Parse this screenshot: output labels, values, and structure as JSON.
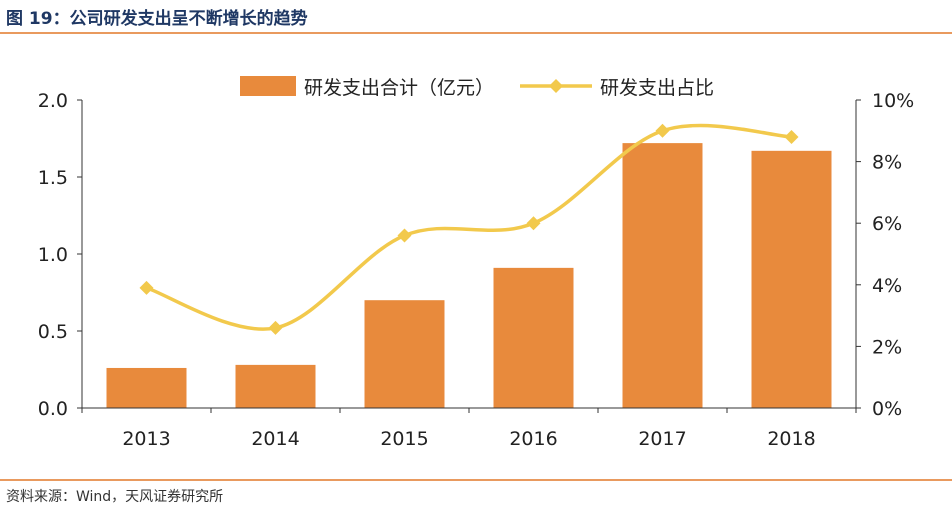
{
  "figure": {
    "title": "图 19：公司研发支出呈不断增长的趋势",
    "source": "资料来源：Wind，天风证券研究所"
  },
  "colors": {
    "bar": "#e88a3c",
    "line": "#f2c94c",
    "accent_rule": "#e99a5e",
    "title": "#1f3864"
  },
  "chart_data": {
    "type": "bar",
    "categories": [
      "2013",
      "2014",
      "2015",
      "2016",
      "2017",
      "2018"
    ],
    "series": [
      {
        "name": "研发支出合计（亿元）",
        "type": "bar",
        "axis": "left",
        "values": [
          0.26,
          0.28,
          0.7,
          0.91,
          1.72,
          1.67
        ]
      },
      {
        "name": "研发支出占比",
        "type": "line",
        "axis": "right",
        "smooth": true,
        "marker": "diamond",
        "values": [
          3.9,
          2.6,
          5.6,
          6.0,
          9.0,
          8.8
        ]
      }
    ],
    "y_left": {
      "min": 0,
      "max": 2.0,
      "ticks": [
        "0.0",
        "0.5",
        "1.0",
        "1.5",
        "2.0"
      ]
    },
    "y_right": {
      "min": 0,
      "max": 10,
      "ticks": [
        "0%",
        "2%",
        "4%",
        "6%",
        "8%",
        "10%"
      ]
    },
    "legend_position": "top-center",
    "grid": false
  }
}
